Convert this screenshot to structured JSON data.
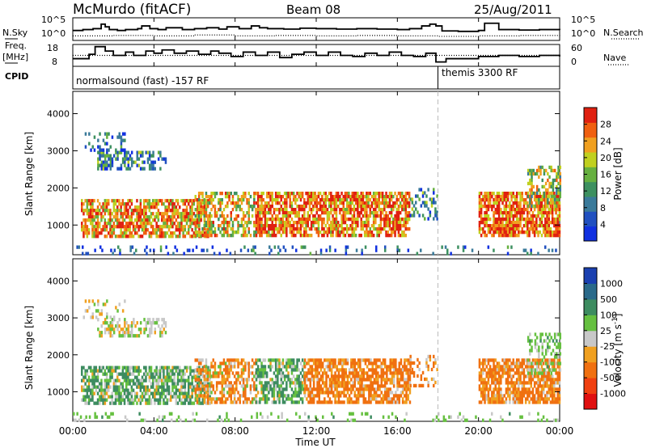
{
  "header": {
    "station": "McMurdo (fitACF)",
    "beam": "Beam 08",
    "date": "25/Aug/2011"
  },
  "colors": {
    "power_scale": [
      "#1030e0",
      "#2050c0",
      "#3a7a9a",
      "#3d9060",
      "#66b040",
      "#c0d020",
      "#f0a020",
      "#f06010",
      "#e02010"
    ],
    "velocity_scale": [
      "#e01010",
      "#f04010",
      "#f07010",
      "#f0a020",
      "#c8c8c8",
      "#66c040",
      "#3d8c60",
      "#2a6a8a",
      "#1a40b0"
    ]
  },
  "chart_data": [
    {
      "type": "line",
      "panel": "noise",
      "left_label": "N.Sky",
      "right_label": "N.Search",
      "left_ticks": [
        "10^5",
        "10^0"
      ],
      "right_ticks": [
        "10^5",
        "10^0"
      ],
      "x_ticks": [
        "00:00",
        "04:00",
        "08:00",
        "12:00",
        "16:00",
        "20:00",
        "00:00"
      ],
      "x_range_hours": [
        0,
        24
      ],
      "series": [
        {
          "name": "N.Sky",
          "style": "solid",
          "x": [
            0,
            0.5,
            1.0,
            1.4,
            1.6,
            1.8,
            2.2,
            2.6,
            3.2,
            3.4,
            3.8,
            4.2,
            4.6,
            5.4,
            6.0,
            6.6,
            7.2,
            7.6,
            8.2,
            8.8,
            9.2,
            9.6,
            10.4,
            11.2,
            12.0,
            13.0,
            14.0,
            15.0,
            16.0,
            16.6,
            17.2,
            17.6,
            17.9,
            18.2,
            19.0,
            20.0,
            20.3,
            21.0,
            22.0,
            23.0,
            24.0
          ],
          "y": [
            2.2,
            2.4,
            2.6,
            3.6,
            3.0,
            2.4,
            2.2,
            2.4,
            2.6,
            3.2,
            2.6,
            2.4,
            2.8,
            2.4,
            2.6,
            2.8,
            2.5,
            3.0,
            2.6,
            3.2,
            2.8,
            2.6,
            2.5,
            2.7,
            2.6,
            2.5,
            2.6,
            2.5,
            2.4,
            2.6,
            3.2,
            3.6,
            3.2,
            2.1,
            2.0,
            2.2,
            3.8,
            2.4,
            2.3,
            2.4,
            2.3
          ]
        },
        {
          "name": "N.Search",
          "style": "dotted",
          "x": [
            0,
            2,
            4,
            6,
            8,
            10,
            12,
            14,
            16,
            18,
            20,
            22,
            24
          ],
          "y": [
            1.0,
            1.1,
            1.0,
            1.2,
            1.0,
            1.1,
            1.0,
            1.1,
            1.0,
            0.9,
            1.0,
            1.1,
            1.0
          ]
        }
      ]
    },
    {
      "type": "line",
      "panel": "frequency",
      "left_label_lines": [
        "Freq.",
        "[MHz]"
      ],
      "right_label": "Nave",
      "left_ticks": [
        "18",
        "8"
      ],
      "right_ticks": [
        "60",
        "0"
      ],
      "series": [
        {
          "name": "Freq.",
          "style": "solid",
          "x": [
            0,
            0.8,
            1.1,
            1.6,
            2.0,
            2.6,
            3.0,
            3.6,
            4.0,
            4.4,
            5.0,
            5.6,
            6.2,
            6.8,
            7.2,
            7.8,
            8.4,
            9.0,
            9.6,
            10.2,
            10.8,
            11.4,
            12.0,
            12.6,
            13.2,
            13.8,
            14.4,
            15.0,
            15.6,
            16.2,
            16.8,
            17.4,
            17.9,
            18.4,
            19.0,
            20.0,
            21.0,
            22.0,
            23.0,
            24.0
          ],
          "y": [
            11.5,
            13.5,
            17.0,
            15.0,
            13.0,
            14.5,
            13.0,
            15.0,
            14.0,
            15.5,
            14.0,
            15.0,
            13.5,
            15.0,
            14.0,
            12.5,
            14.5,
            13.0,
            14.5,
            12.0,
            13.5,
            14.5,
            13.0,
            14.5,
            13.0,
            12.5,
            14.0,
            13.0,
            14.5,
            13.0,
            12.5,
            14.0,
            10.0,
            11.5,
            11.5,
            12.5,
            13.0,
            12.5,
            13.0,
            12.5
          ]
        },
        {
          "name": "Nave",
          "style": "dotted",
          "x": [
            0,
            24
          ],
          "y": [
            13.0,
            13.0
          ]
        }
      ]
    },
    {
      "type": "table",
      "panel": "cpid",
      "label": "CPID",
      "segments": [
        {
          "start_hour": 0,
          "end_hour": 18.0,
          "text": "normalsound (fast) -157 RF"
        },
        {
          "start_hour": 18.0,
          "end_hour": 24,
          "text": "themis 3300 RF"
        }
      ]
    },
    {
      "type": "heatmap",
      "panel": "power",
      "ylabel": "Slant Range [km]",
      "xlabel": "",
      "ylim": [
        200,
        4600
      ],
      "y_ticks": [
        1000,
        2000,
        3000,
        4000
      ],
      "colorbar_label": "Power [dB]",
      "colorbar_ticks": [
        "28",
        "24",
        "20",
        "16",
        "12",
        "8",
        "4"
      ],
      "colorbar_range": [
        0,
        32
      ],
      "echo_regions": [
        {
          "x0": 0.4,
          "x1": 6.8,
          "y0": 700,
          "y1": 1700,
          "value": 24,
          "density": 0.7
        },
        {
          "x0": 1.2,
          "x1": 4.6,
          "y0": 2500,
          "y1": 3000,
          "value": 10,
          "density": 0.5
        },
        {
          "x0": 0.5,
          "x1": 2.6,
          "y0": 3000,
          "y1": 3500,
          "value": 8,
          "density": 0.25
        },
        {
          "x0": 6.0,
          "x1": 9.0,
          "y0": 700,
          "y1": 1900,
          "value": 20,
          "density": 0.55
        },
        {
          "x0": 9.0,
          "x1": 16.6,
          "y0": 700,
          "y1": 1900,
          "value": 26,
          "density": 0.72
        },
        {
          "x0": 16.6,
          "x1": 18.0,
          "y0": 1200,
          "y1": 2000,
          "value": 10,
          "density": 0.3
        },
        {
          "x0": 20.0,
          "x1": 24.0,
          "y0": 700,
          "y1": 1900,
          "value": 27,
          "density": 0.78
        },
        {
          "x0": 22.4,
          "x1": 24.0,
          "y0": 1500,
          "y1": 2600,
          "value": 18,
          "density": 0.4
        },
        {
          "x0": 0.0,
          "x1": 24.0,
          "y0": 250,
          "y1": 450,
          "value": 6,
          "density": 0.15
        }
      ]
    },
    {
      "type": "heatmap",
      "panel": "velocity",
      "ylabel": "Slant Range [km]",
      "xlabel": "Time UT",
      "ylim": [
        200,
        4600
      ],
      "y_ticks": [
        1000,
        2000,
        3000,
        4000
      ],
      "colorbar_label": "Velocity [m s^-1]",
      "colorbar_ticks": [
        "1000",
        "500",
        "100",
        "25",
        "-25",
        "-100",
        "-500",
        "-1000"
      ],
      "echo_regions": [
        {
          "x0": 0.4,
          "x1": 6.8,
          "y0": 700,
          "y1": 1700,
          "value": 100,
          "density": 0.7
        },
        {
          "x0": 1.2,
          "x1": 4.6,
          "y0": 2500,
          "y1": 3000,
          "value": 0,
          "density": 0.5
        },
        {
          "x0": 0.5,
          "x1": 2.6,
          "y0": 3000,
          "y1": 3500,
          "value": 0,
          "density": 0.25
        },
        {
          "x0": 6.0,
          "x1": 9.0,
          "y0": 700,
          "y1": 1900,
          "value": -100,
          "density": 0.55
        },
        {
          "x0": 9.0,
          "x1": 11.4,
          "y0": 700,
          "y1": 1900,
          "value": 100,
          "density": 0.65
        },
        {
          "x0": 11.4,
          "x1": 16.6,
          "y0": 700,
          "y1": 1900,
          "value": -150,
          "density": 0.72
        },
        {
          "x0": 16.6,
          "x1": 18.0,
          "y0": 1200,
          "y1": 2000,
          "value": -150,
          "density": 0.3
        },
        {
          "x0": 20.0,
          "x1": 24.0,
          "y0": 700,
          "y1": 1900,
          "value": -150,
          "density": 0.78
        },
        {
          "x0": 22.4,
          "x1": 24.0,
          "y0": 1500,
          "y1": 2600,
          "value": 50,
          "density": 0.4
        },
        {
          "x0": 0.0,
          "x1": 24.0,
          "y0": 250,
          "y1": 450,
          "value": 50,
          "density": 0.15
        }
      ]
    }
  ]
}
